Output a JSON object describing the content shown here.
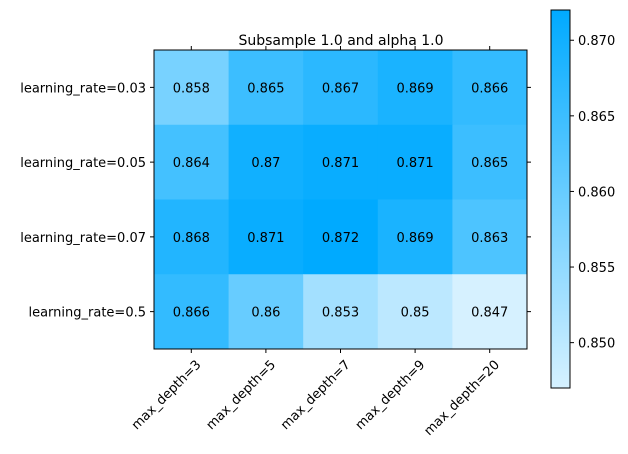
{
  "chart_data": {
    "type": "heatmap",
    "title": "Subsample 1.0 and alpha 1.0",
    "x_categories": [
      "max_depth=3",
      "max_depth=5",
      "max_depth=7",
      "max_depth=9",
      "max_depth=20"
    ],
    "y_categories": [
      "learning_rate=0.03",
      "learning_rate=0.05",
      "learning_rate=0.07",
      "learning_rate=0.5"
    ],
    "values": [
      [
        0.858,
        0.865,
        0.867,
        0.869,
        0.866
      ],
      [
        0.864,
        0.87,
        0.871,
        0.871,
        0.865
      ],
      [
        0.868,
        0.871,
        0.872,
        0.869,
        0.863
      ],
      [
        0.866,
        0.86,
        0.853,
        0.85,
        0.847
      ]
    ],
    "cell_labels": [
      [
        "0.858",
        "0.865",
        "0.867",
        "0.869",
        "0.866"
      ],
      [
        "0.864",
        "0.87",
        "0.871",
        "0.871",
        "0.865"
      ],
      [
        "0.868",
        "0.871",
        "0.872",
        "0.869",
        "0.863"
      ],
      [
        "0.866",
        "0.86",
        "0.853",
        "0.85",
        "0.847"
      ]
    ],
    "colorbar": {
      "range": [
        0.847,
        0.872
      ],
      "ticks": [
        0.85,
        0.855,
        0.86,
        0.865,
        0.87
      ],
      "tick_labels": [
        "0.850",
        "0.855",
        "0.860",
        "0.865",
        "0.870"
      ],
      "color_low": "#d6f1ff",
      "color_high": "#00aaff"
    }
  }
}
